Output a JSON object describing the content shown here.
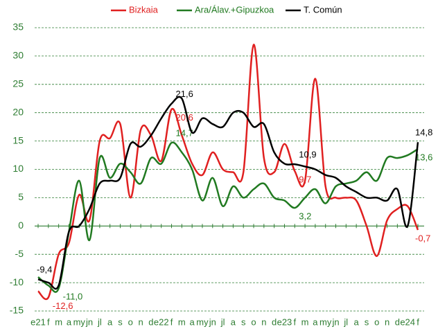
{
  "chart_data": {
    "type": "line",
    "categories": [
      "e21",
      "f",
      "m",
      "a",
      "my",
      "jn",
      "jl",
      "a",
      "s",
      "o",
      "n",
      "d",
      "e22",
      "f",
      "m",
      "a",
      "my",
      "jn",
      "jl",
      "a",
      "s",
      "o",
      "n",
      "d",
      "e23",
      "f",
      "m",
      "a",
      "my",
      "jn",
      "jl",
      "a",
      "s",
      "o",
      "n",
      "d",
      "e24",
      "f"
    ],
    "series": [
      {
        "name": "Bizkaia",
        "color": "#e02020",
        "values": [
          -11.5,
          -12.6,
          -5,
          -3,
          5.5,
          1,
          15,
          15.5,
          18,
          5,
          17,
          16,
          11.5,
          20.6,
          16,
          11,
          9,
          13,
          10,
          9.5,
          9.5,
          32,
          12,
          9.5,
          14.5,
          9.7,
          8,
          26,
          7,
          5,
          5,
          4.5,
          0,
          -5.3,
          1,
          3,
          3.5,
          -0.7
        ],
        "value_labels": [
          null,
          "-12,6",
          null,
          null,
          null,
          null,
          null,
          null,
          null,
          null,
          null,
          null,
          null,
          "20,6",
          null,
          null,
          null,
          null,
          null,
          null,
          null,
          null,
          null,
          null,
          null,
          "9,7",
          null,
          null,
          null,
          null,
          null,
          null,
          null,
          null,
          null,
          null,
          null,
          "-0,7"
        ]
      },
      {
        "name": "Ara/Álav.+Gipuzkoa",
        "color": "#217a21",
        "values": [
          -9,
          -10.5,
          -11,
          -1,
          8,
          -2.5,
          12,
          8.5,
          11,
          9.5,
          7.5,
          12,
          11,
          14.7,
          13,
          10,
          4.5,
          8.5,
          3.5,
          7,
          5,
          6.5,
          7.5,
          5,
          4.5,
          3.2,
          5,
          6.5,
          4,
          7,
          7.5,
          8,
          9.5,
          8,
          12,
          12,
          12.5,
          13.6
        ],
        "value_labels": [
          null,
          null,
          "-11,0",
          null,
          null,
          null,
          null,
          null,
          null,
          null,
          null,
          null,
          null,
          "14,7",
          null,
          null,
          null,
          null,
          null,
          null,
          null,
          null,
          null,
          null,
          null,
          "3,2",
          null,
          null,
          null,
          null,
          null,
          null,
          null,
          null,
          null,
          null,
          null,
          "13,6"
        ]
      },
      {
        "name": "T. Común",
        "color": "#000000",
        "values": [
          -9.4,
          -10,
          -10.5,
          -1,
          0,
          3,
          7.5,
          8,
          8.5,
          14.5,
          14,
          16,
          19,
          21.6,
          22.5,
          16.5,
          19,
          18,
          17.5,
          20,
          20,
          17.5,
          18,
          13,
          11,
          10.9,
          10.5,
          10,
          9,
          8.5,
          7,
          6,
          5,
          5,
          4.5,
          6.5,
          0,
          14.8
        ],
        "value_labels": [
          "-9,4",
          null,
          null,
          null,
          null,
          null,
          null,
          null,
          null,
          null,
          null,
          null,
          null,
          "21,6",
          null,
          null,
          null,
          null,
          null,
          null,
          null,
          null,
          null,
          null,
          null,
          "10,9",
          null,
          null,
          null,
          null,
          null,
          null,
          null,
          null,
          null,
          null,
          null,
          "14,8"
        ]
      }
    ],
    "ylim": [
      -15,
      35
    ],
    "yticks": [
      -15,
      -10,
      -5,
      0,
      5,
      10,
      15,
      20,
      25,
      30,
      35
    ],
    "grid": true,
    "legend": "top"
  }
}
